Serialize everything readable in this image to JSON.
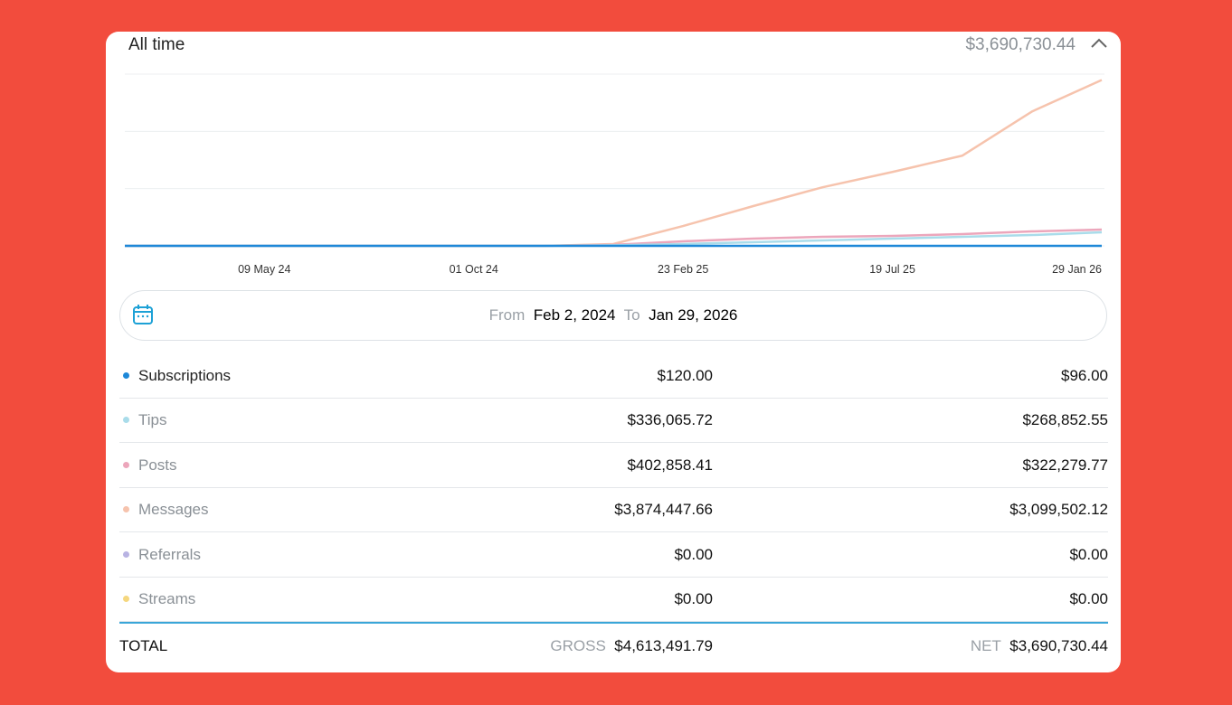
{
  "header": {
    "title": "All time",
    "total": "$3,690,730.44"
  },
  "chart_data": {
    "type": "line",
    "categories": [
      null,
      null,
      "09 May 24",
      null,
      null,
      "01 Oct 24",
      null,
      null,
      "23 Feb 25",
      null,
      null,
      "19 Jul 25",
      null,
      null,
      "29 Jan 26"
    ],
    "series": [
      {
        "name": "Messages",
        "color": "#f6c3ad",
        "values": [
          0,
          0,
          0,
          0,
          0,
          0,
          0,
          35000,
          381000,
          762000,
          1126000,
          1420000,
          1732000,
          2581000,
          3187000
        ]
      },
      {
        "name": "Posts",
        "color": "#eca6bb",
        "values": [
          0,
          0,
          0,
          0,
          0,
          0,
          0,
          20000,
          87000,
          139000,
          173000,
          190000,
          225000,
          277000,
          312000
        ]
      },
      {
        "name": "Tips",
        "color": "#a9dcea",
        "values": [
          0,
          0,
          0,
          0,
          0,
          0,
          0,
          10000,
          35000,
          69000,
          104000,
          139000,
          173000,
          208000,
          260000
        ]
      },
      {
        "name": "Subscriptions",
        "color": "#1e88d8",
        "values": [
          0,
          0,
          0,
          0,
          0,
          0,
          0,
          0,
          0,
          0,
          0,
          0,
          0,
          0,
          0
        ]
      }
    ],
    "ylim": [
      0,
      3300000
    ],
    "yticks": [
      0,
      1100000,
      2200000,
      3300000
    ],
    "grid": true
  },
  "date_range": {
    "from_label": "From",
    "from": "Feb 2, 2024",
    "to_label": "To",
    "to": "Jan 29, 2026"
  },
  "table": {
    "rows": [
      {
        "name": "Subscriptions",
        "color": "#1e88d8",
        "gross": "$120.00",
        "net": "$96.00"
      },
      {
        "name": "Tips",
        "color": "#a9dcea",
        "gross": "$336,065.72",
        "net": "$268,852.55"
      },
      {
        "name": "Posts",
        "color": "#eca6bb",
        "gross": "$402,858.41",
        "net": "$322,279.77"
      },
      {
        "name": "Messages",
        "color": "#f6c3ad",
        "gross": "$3,874,447.66",
        "net": "$3,099,502.12"
      },
      {
        "name": "Referrals",
        "color": "#b8b3e3",
        "gross": "$0.00",
        "net": "$0.00"
      },
      {
        "name": "Streams",
        "color": "#f5d77e",
        "gross": "$0.00",
        "net": "$0.00"
      }
    ],
    "total": {
      "label": "TOTAL",
      "gross_label": "GROSS",
      "gross": "$4,613,491.79",
      "net_label": "NET",
      "net": "$3,690,730.44"
    }
  }
}
